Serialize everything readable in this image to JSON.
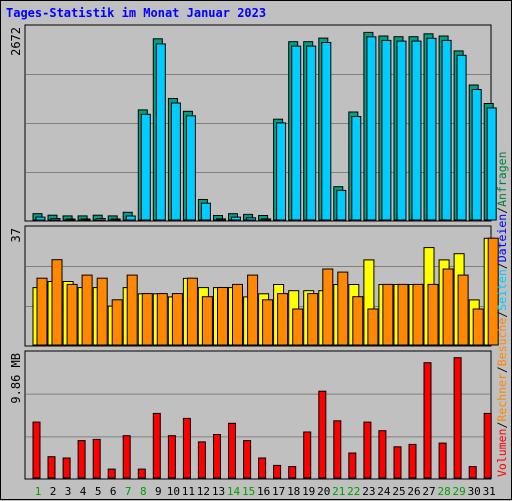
{
  "title": "Tages-Statistik im Monat Januar 2023",
  "chart_data": [
    {
      "type": "bar",
      "panel": "top",
      "ymax_label": "2672",
      "ylim": [
        0,
        2672
      ],
      "categories": [
        "1",
        "2",
        "3",
        "4",
        "5",
        "6",
        "7",
        "8",
        "9",
        "10",
        "11",
        "12",
        "13",
        "14",
        "15",
        "16",
        "17",
        "18",
        "19",
        "20",
        "21",
        "22",
        "23",
        "24",
        "25",
        "26",
        "27",
        "28",
        "29",
        "30",
        "31"
      ],
      "weekend_days": [
        "1",
        "7",
        "8",
        "14",
        "15",
        "21",
        "22",
        "28",
        "29"
      ],
      "series": [
        {
          "name": "Anfragen",
          "color": "#00a080",
          "values": [
            60,
            40,
            30,
            30,
            40,
            30,
            80,
            1520,
            2520,
            1680,
            1500,
            260,
            35,
            60,
            50,
            35,
            1390,
            2480,
            2480,
            2530,
            440,
            1490,
            2610,
            2560,
            2550,
            2550,
            2590,
            2560,
            2350,
            1870,
            1610
          ]
        },
        {
          "name": "Dateien",
          "color": "#00ccff",
          "values": [
            55,
            35,
            28,
            28,
            35,
            28,
            70,
            1500,
            2490,
            1660,
            1480,
            250,
            30,
            55,
            45,
            30,
            1380,
            2460,
            2460,
            2510,
            430,
            1470,
            2590,
            2540,
            2530,
            2530,
            2570,
            2540,
            2330,
            1850,
            1590
          ]
        }
      ]
    },
    {
      "type": "bar",
      "panel": "middle",
      "ymax_label": "37",
      "ylim": [
        0,
        37
      ],
      "categories": [
        "1",
        "2",
        "3",
        "4",
        "5",
        "6",
        "7",
        "8",
        "9",
        "10",
        "11",
        "12",
        "13",
        "14",
        "15",
        "16",
        "17",
        "18",
        "19",
        "20",
        "21",
        "22",
        "23",
        "24",
        "25",
        "26",
        "27",
        "28",
        "29",
        "30",
        "31"
      ],
      "series": [
        {
          "name": "Seiten",
          "color": "#ffff00",
          "values": [
            17,
            19,
            19,
            17,
            17,
            11,
            17,
            15,
            15,
            14,
            20,
            17,
            17,
            17,
            14,
            15,
            18,
            16,
            16,
            16,
            18,
            18,
            26,
            18,
            18,
            18,
            30,
            26,
            28,
            13,
            33
          ]
        },
        {
          "name": "Besuche",
          "color": "#ff8800",
          "values": [
            22,
            28,
            20,
            23,
            22,
            15,
            23,
            17,
            17,
            17,
            22,
            16,
            19,
            20,
            23,
            15,
            17,
            12,
            17,
            25,
            24,
            16,
            12,
            20,
            20,
            20,
            20,
            25,
            23,
            12,
            35
          ]
        }
      ]
    },
    {
      "type": "bar",
      "panel": "bottom",
      "ymax_label": "9.86 MB",
      "ylim": [
        0,
        9.86
      ],
      "categories": [
        "1",
        "2",
        "3",
        "4",
        "5",
        "6",
        "7",
        "8",
        "9",
        "10",
        "11",
        "12",
        "13",
        "14",
        "15",
        "16",
        "17",
        "18",
        "19",
        "20",
        "21",
        "22",
        "23",
        "24",
        "25",
        "26",
        "27",
        "28",
        "29",
        "30",
        "31"
      ],
      "series": [
        {
          "name": "Volumen",
          "color": "#ff0000",
          "values": [
            4.6,
            1.8,
            1.7,
            3.1,
            3.2,
            0.8,
            3.5,
            0.8,
            5.3,
            3.5,
            4.9,
            3.0,
            3.6,
            4.5,
            3.1,
            1.7,
            1.1,
            1.0,
            3.8,
            7.1,
            4.7,
            2.1,
            4.6,
            3.9,
            2.6,
            2.8,
            9.4,
            2.9,
            9.8,
            1.0,
            5.3
          ]
        }
      ]
    }
  ],
  "legend": {
    "separator": "/",
    "items": [
      {
        "label": "Anfragen",
        "color": "#008040"
      },
      {
        "label": "Dateien",
        "color": "#0000ff"
      },
      {
        "label": "Seiten",
        "color": "#00ccff"
      },
      {
        "label": "Besuche",
        "color": "#ff8800"
      },
      {
        "label": "Rechner",
        "color": "#ff8800"
      },
      {
        "label": "Volumen",
        "color": "#ff0000"
      }
    ]
  },
  "colors": {
    "background": "#c0c0c0",
    "grid": "#808080",
    "title": "#0000ff",
    "weekday_label": "#000000",
    "weekend_label": "#00a000"
  }
}
